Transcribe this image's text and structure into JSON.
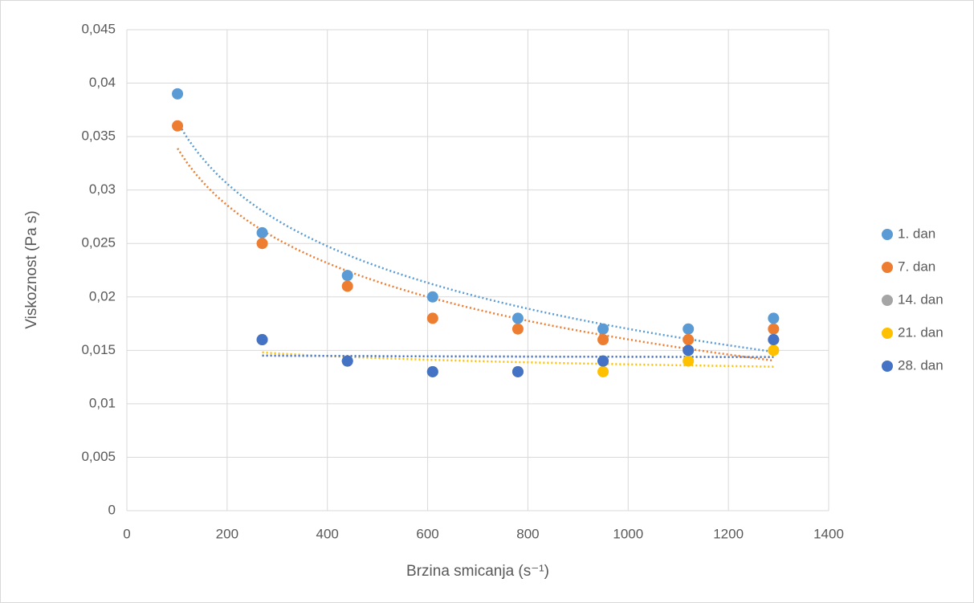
{
  "chart_data": {
    "type": "scatter",
    "x_label": "Brzina smicanja (s⁻¹)",
    "y_label": "Viskoznost (Pa s)",
    "x": [
      101,
      270,
      440,
      610,
      780,
      950,
      1120,
      1290
    ],
    "series": [
      {
        "name": "1. dan",
        "color": "#5b9bd5",
        "values": [
          0.039,
          0.026,
          0.022,
          0.02,
          0.018,
          0.017,
          0.017,
          0.018
        ]
      },
      {
        "name": "7. dan",
        "color": "#ed7d31",
        "values": [
          0.036,
          0.025,
          0.021,
          0.018,
          0.017,
          0.016,
          0.016,
          0.017
        ]
      },
      {
        "name": "14. dan",
        "color": "#a5a5a5",
        "values": [
          null,
          0.016,
          0.014,
          0.013,
          0.013,
          0.014,
          0.015,
          0.016
        ]
      },
      {
        "name": "21. dan",
        "color": "#ffc000",
        "values": [
          null,
          0.016,
          0.014,
          0.013,
          0.013,
          0.013,
          0.014,
          0.015
        ]
      },
      {
        "name": "28. dan",
        "color": "#4472c4",
        "values": [
          null,
          0.016,
          0.014,
          0.013,
          0.013,
          0.014,
          0.015,
          0.016
        ]
      }
    ],
    "xlim": [
      0,
      1400
    ],
    "xticks": [
      0,
      200,
      400,
      600,
      800,
      1000,
      1200,
      1400
    ],
    "ylim": [
      0,
      0.045
    ],
    "yticks": [
      0,
      {
        "value": 0.005,
        "label": "0,005"
      },
      {
        "value": 0.01,
        "label": "0,01"
      },
      {
        "value": 0.015,
        "label": "0,015"
      },
      {
        "value": 0.02,
        "label": "0,02"
      },
      {
        "value": 0.025,
        "label": "0,025"
      },
      {
        "value": 0.03,
        "label": "0,03"
      },
      {
        "value": 0.035,
        "label": "0,035"
      },
      {
        "value": 0.04,
        "label": "0,04"
      },
      {
        "value": 0.045,
        "label": "0,045"
      }
    ],
    "grid": true,
    "trendline": "logarithmic",
    "legend": "right"
  }
}
